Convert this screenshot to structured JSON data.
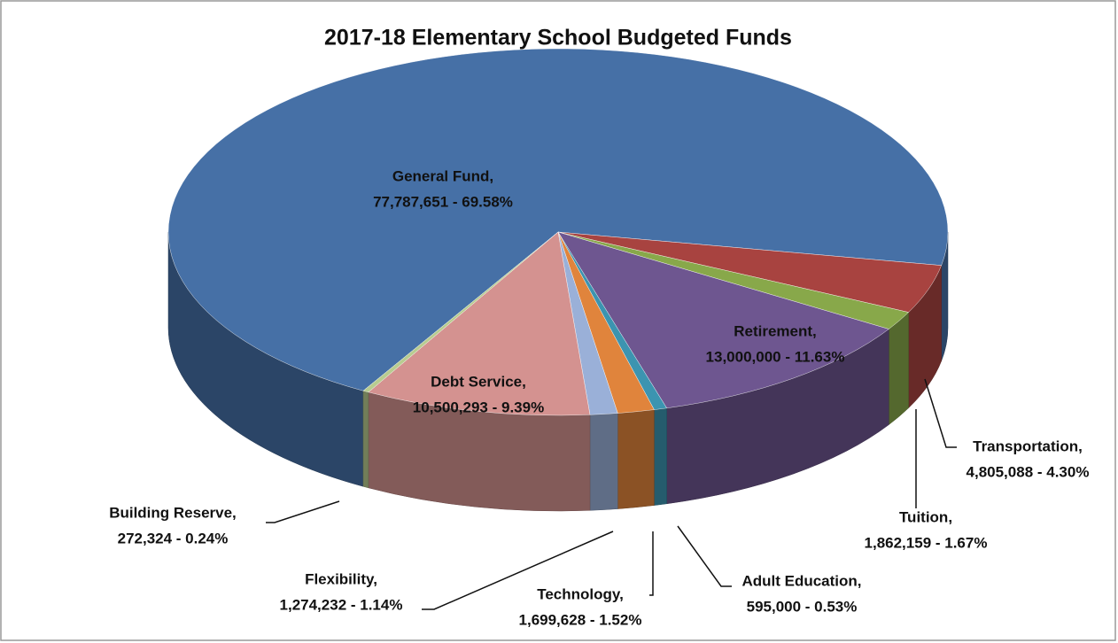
{
  "chart_data": {
    "type": "pie",
    "title": "2017-18 Elementary School Budgeted Funds",
    "categories": [
      "General Fund,",
      "Transportation,",
      "Tuition,",
      "Retirement,",
      "Adult Education,",
      "Technology,",
      "Flexibility,",
      "Debt Service,",
      "Building Reserve,"
    ],
    "values": [
      77787651,
      4805088,
      1862159,
      13000000,
      595000,
      1699628,
      1274232,
      10500293,
      272324
    ],
    "value_labels": [
      "77,787,651 - 69.58%",
      "4,805,088 - 4.30%",
      "1,862,159 - 1.67%",
      "13,000,000 - 11.63%",
      "595,000 - 0.53%",
      "1,699,628 - 1.52%",
      "1,274,232 - 1.14%",
      "10,500,293 - 9.39%",
      "272,324 - 0.24%"
    ],
    "colors": [
      "#4670a6",
      "#a84340",
      "#88a84a",
      "#6e5690",
      "#3c94b0",
      "#e0843c",
      "#9ab0d8",
      "#d49290",
      "#b8cc90"
    ]
  }
}
